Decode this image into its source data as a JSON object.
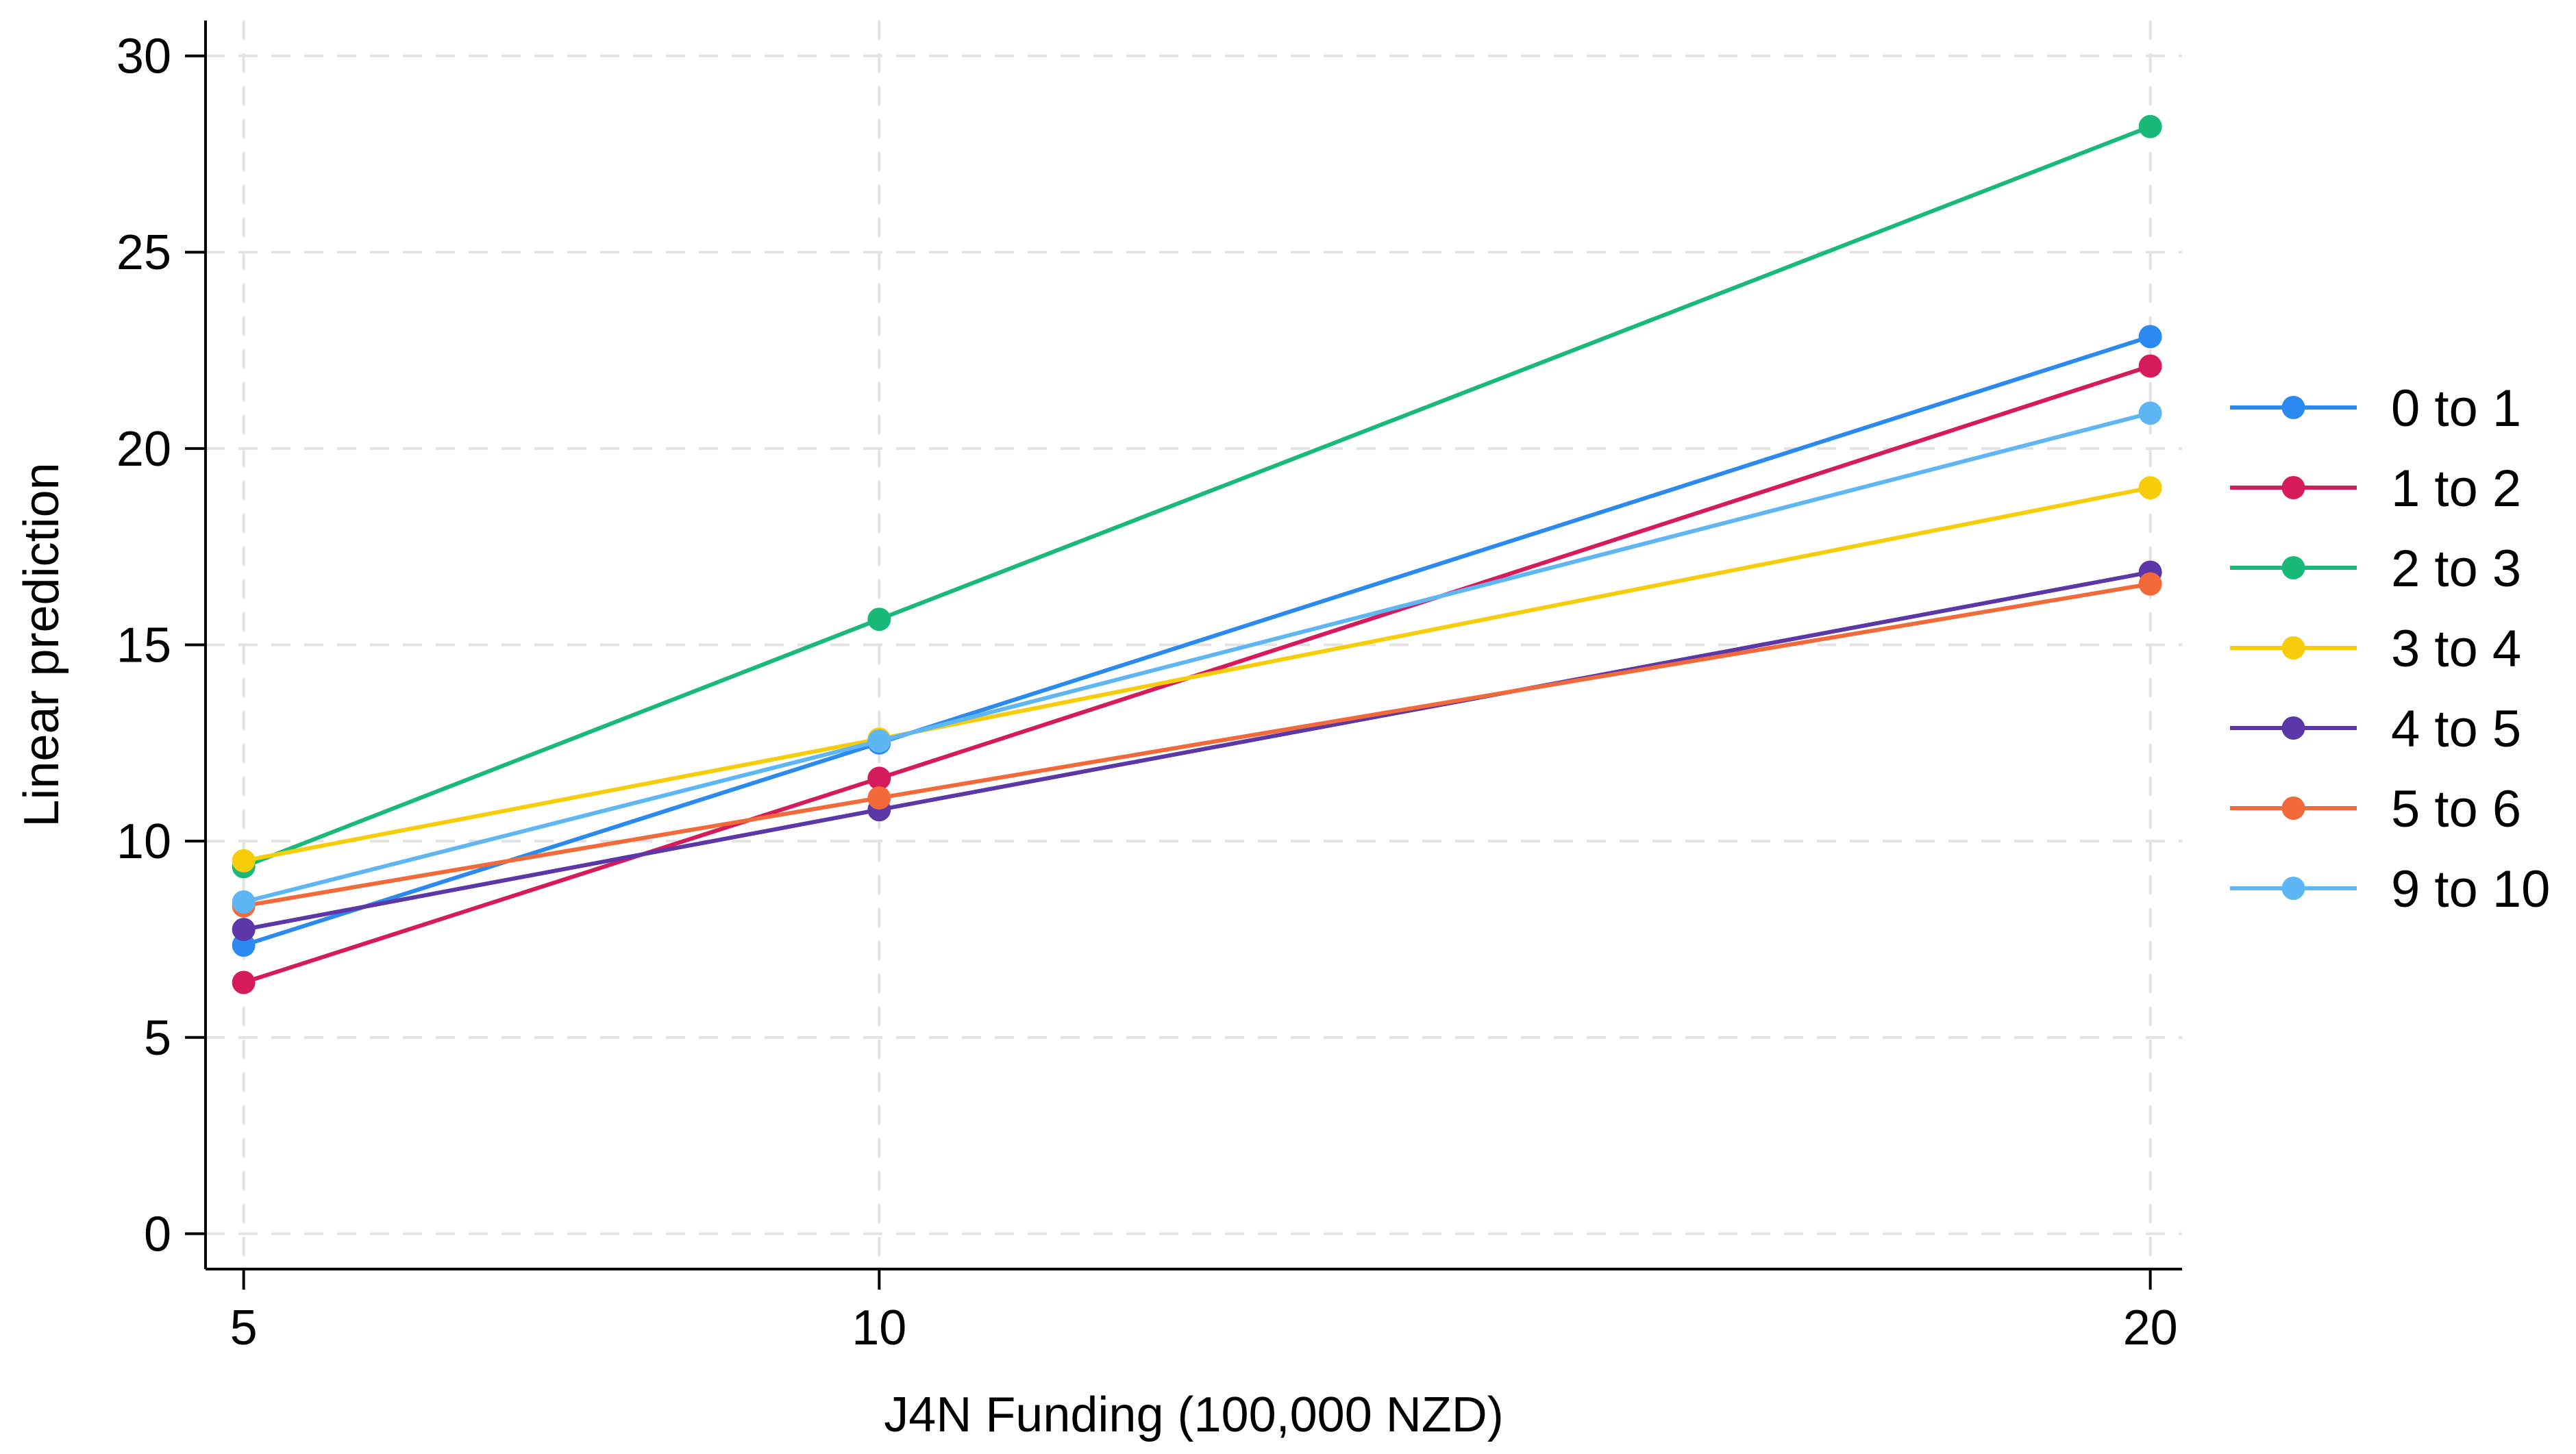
{
  "chart_data": {
    "type": "line",
    "title": "",
    "xlabel": "J4N Funding (100,000 NZD)",
    "ylabel": "Linear prediction",
    "x": [
      5,
      10,
      20
    ],
    "xticks": [
      "5",
      "10",
      "20"
    ],
    "yticks": [
      "0",
      "5",
      "10",
      "15",
      "20",
      "25",
      "30"
    ],
    "xlim": [
      4.7,
      20.25
    ],
    "ylim": [
      -0.9,
      30.9
    ],
    "grid": true,
    "legend_position": "right",
    "series": [
      {
        "name": "0 to 1",
        "color": "#2a8af0",
        "values": [
          7.35,
          12.5,
          22.85
        ]
      },
      {
        "name": "1 to 2",
        "color": "#d61b5c",
        "values": [
          6.4,
          11.6,
          22.1
        ]
      },
      {
        "name": "2 to 3",
        "color": "#19b97a",
        "values": [
          9.35,
          15.65,
          28.2
        ]
      },
      {
        "name": "3 to 4",
        "color": "#f7cc0a",
        "values": [
          9.5,
          12.6,
          19.0
        ]
      },
      {
        "name": "4 to 5",
        "color": "#5c37a8",
        "values": [
          7.75,
          10.8,
          16.85
        ]
      },
      {
        "name": "5 to 6",
        "color": "#f2693a",
        "values": [
          8.35,
          11.1,
          16.55
        ]
      },
      {
        "name": "9 to 10",
        "color": "#5fb6f5",
        "values": [
          8.45,
          12.55,
          20.9
        ]
      }
    ]
  }
}
